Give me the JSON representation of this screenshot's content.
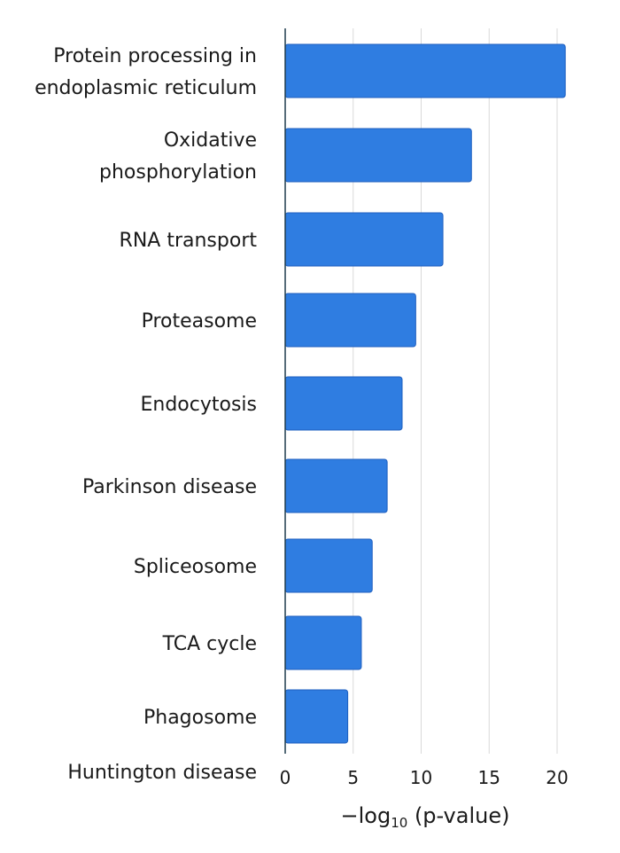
{
  "chart_data": {
    "type": "bar",
    "orientation": "horizontal",
    "categories": [
      "Protein processing in endoplasmic reticulum",
      "Oxidative phosphorylation",
      "RNA transport",
      "Proteasome",
      "Endocytosis",
      "Parkinson disease",
      "Spliceosome",
      "TCA cycle",
      "Phagosome",
      "Huntington disease"
    ],
    "label_lines": [
      [
        "Protein processing in",
        "endoplasmic reticulum"
      ],
      [
        "Oxidative",
        "phosphorylation"
      ],
      [
        "RNA transport"
      ],
      [
        "Proteasome"
      ],
      [
        "Endocytosis"
      ],
      [
        "Parkinson disease"
      ],
      [
        "Spliceosome"
      ],
      [
        "TCA cycle"
      ],
      [
        "Phagosome"
      ],
      [
        "Huntington disease"
      ]
    ],
    "values": [
      20.6,
      13.7,
      11.6,
      9.6,
      8.6,
      7.5,
      6.4,
      5.6,
      4.6,
      null
    ],
    "xlabel": {
      "prefix": "−log",
      "subscript": "10",
      "suffix": " (p-value)"
    },
    "xticks": [
      0,
      5,
      10,
      15,
      20
    ],
    "xlim": [
      0,
      20.6
    ],
    "grid": "vertical",
    "bar_color": "#2f7de1",
    "axis_color": "#1f3b4d"
  }
}
